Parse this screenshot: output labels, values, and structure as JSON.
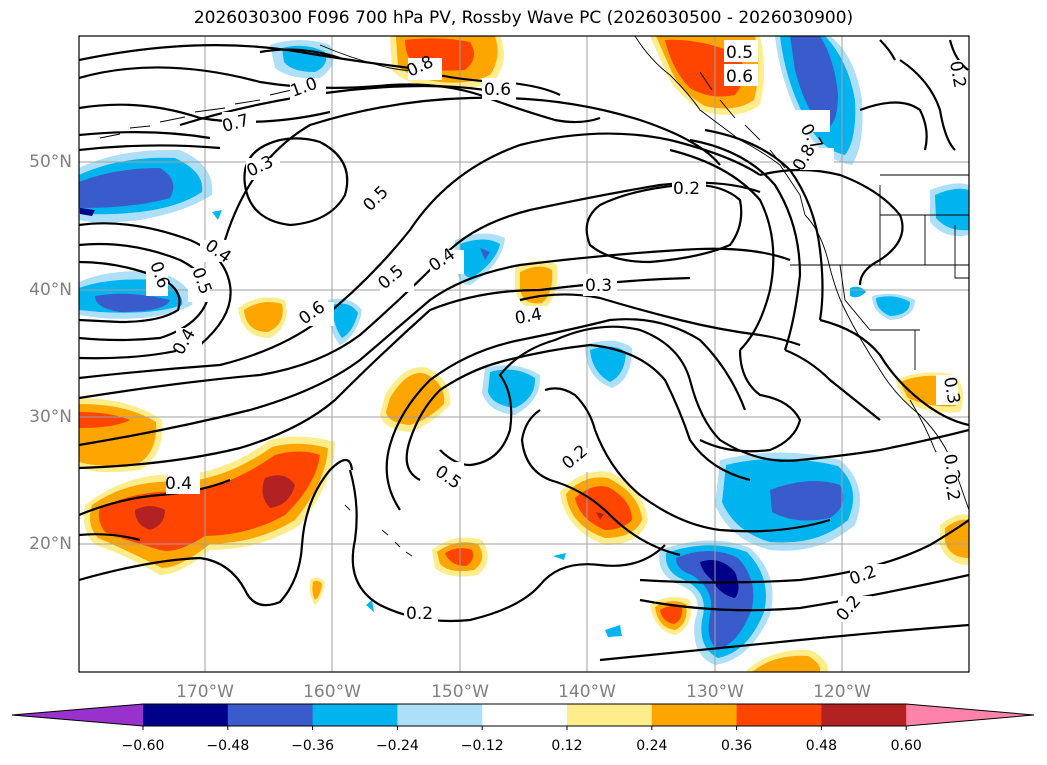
{
  "title": "2026030300 F096 700 hPa PV, Rossby Wave PC (2026030500 - 2026030900)",
  "map": {
    "lon_labels": [
      "170°W",
      "160°W",
      "150°W",
      "140°W",
      "130°W",
      "120°W"
    ],
    "lat_labels": [
      "50°N",
      "40°N",
      "30°N",
      "20°N"
    ],
    "contour_labels": [
      "1.0",
      "0.8",
      "0.6",
      "0.7",
      "0.5",
      "0.6",
      "0.7",
      "0.8",
      "0.3",
      "0.5",
      "0.2",
      "0.4",
      "0.5",
      "0.6",
      "0.4",
      "0.5",
      "0.4",
      "0.3",
      "0.4",
      "0.6",
      "0.4",
      "0.2",
      "0.5",
      "0.3",
      "0.2",
      "0.2",
      "0.2",
      "0.2",
      "0.2",
      "0.2"
    ]
  },
  "colorbar": {
    "ticks": [
      "−0.60",
      "−0.48",
      "−0.36",
      "−0.24",
      "−0.12",
      "0.12",
      "0.24",
      "0.36",
      "0.48",
      "0.60"
    ],
    "colors": [
      "#9932cc",
      "#00008b",
      "#3a5bcc",
      "#00b4ef",
      "#ade0f8",
      "#ffffff",
      "#ffec8b",
      "#ffa500",
      "#ff4500",
      "#b22222",
      "#ff82ab"
    ]
  }
}
